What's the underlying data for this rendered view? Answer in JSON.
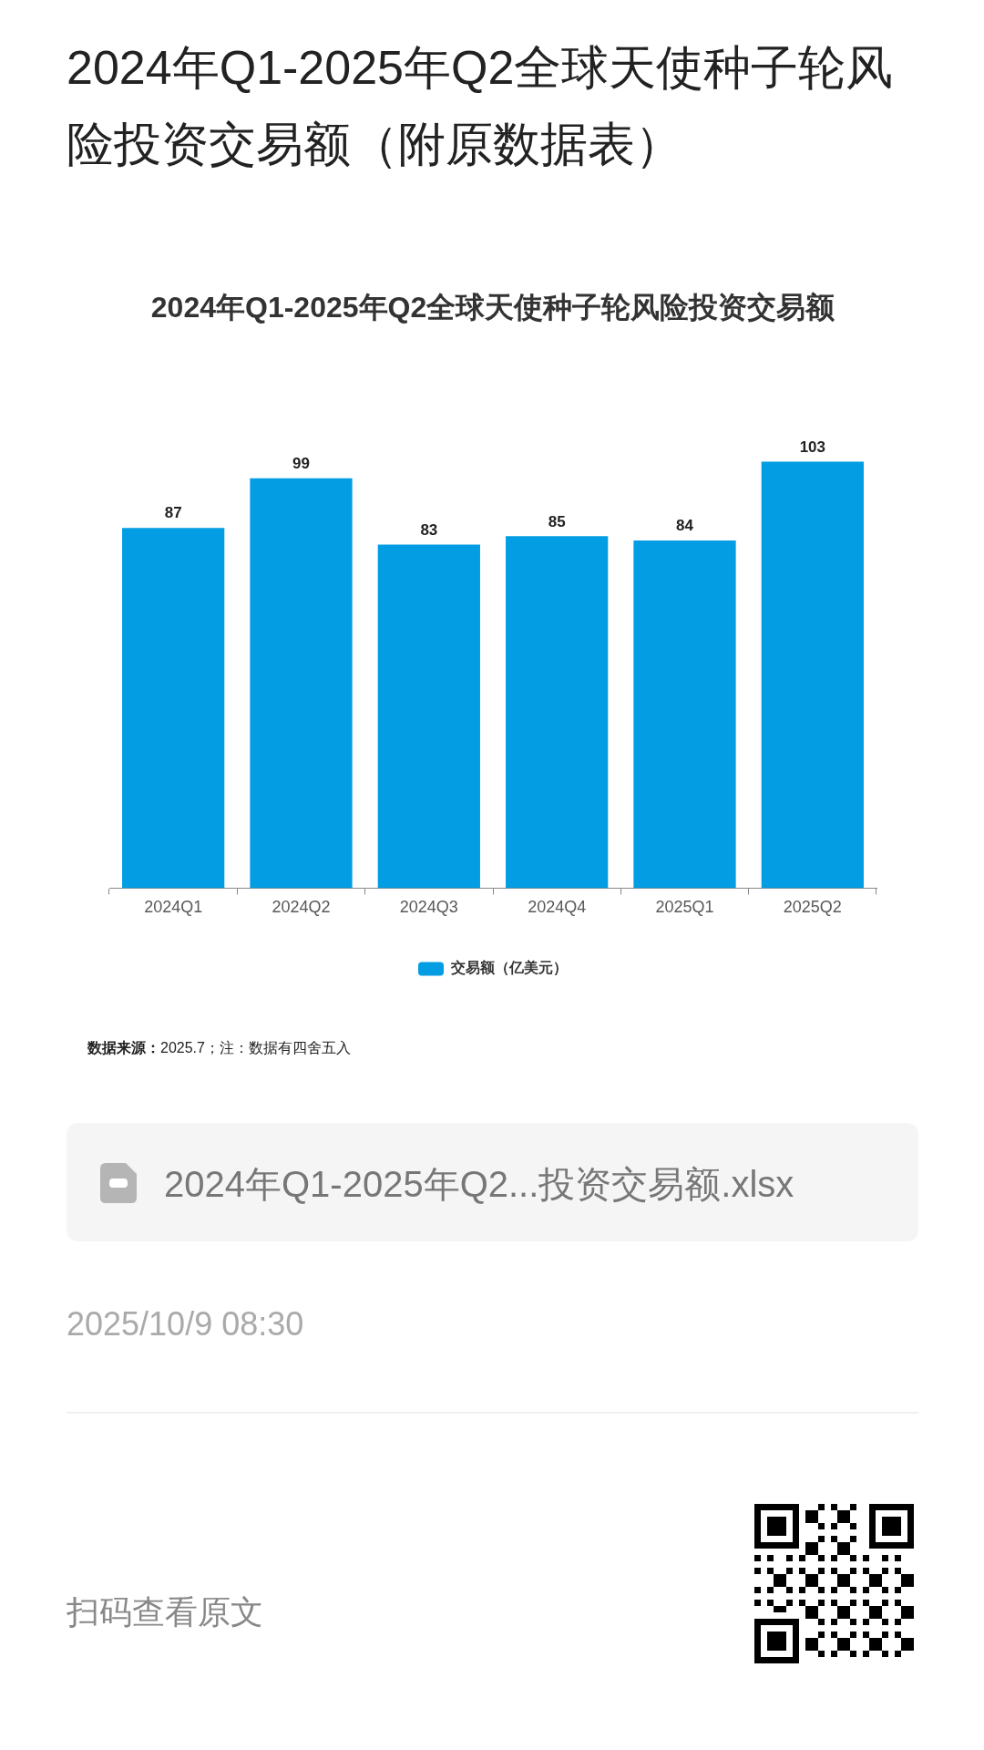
{
  "chart_data": {
    "type": "bar",
    "title": "2024年Q1-2025年Q2全球天使种子轮风险投资交易额（附原数据表）",
    "subtitle": "2024年Q1-2025年Q2全球天使种子轮风险投资交易额",
    "categories": [
      "2024Q1",
      "2024Q2",
      "2024Q3",
      "2024Q4",
      "2025Q1",
      "2025Q2"
    ],
    "series": [
      {
        "name": "交易额（亿美元）",
        "color": "#029de2",
        "values": [
          87,
          99,
          83,
          85,
          84,
          103
        ]
      }
    ],
    "data_labels": true,
    "legend": "bottom",
    "tick_labels": "x",
    "annotations": [
      "数据来源：2025.7；注：数据有四舍五入",
      "2024年Q1-2025年Q2...投资交易额.xlsx",
      "2025/10/9 08:30",
      "扫码查看原文"
    ]
  }
}
